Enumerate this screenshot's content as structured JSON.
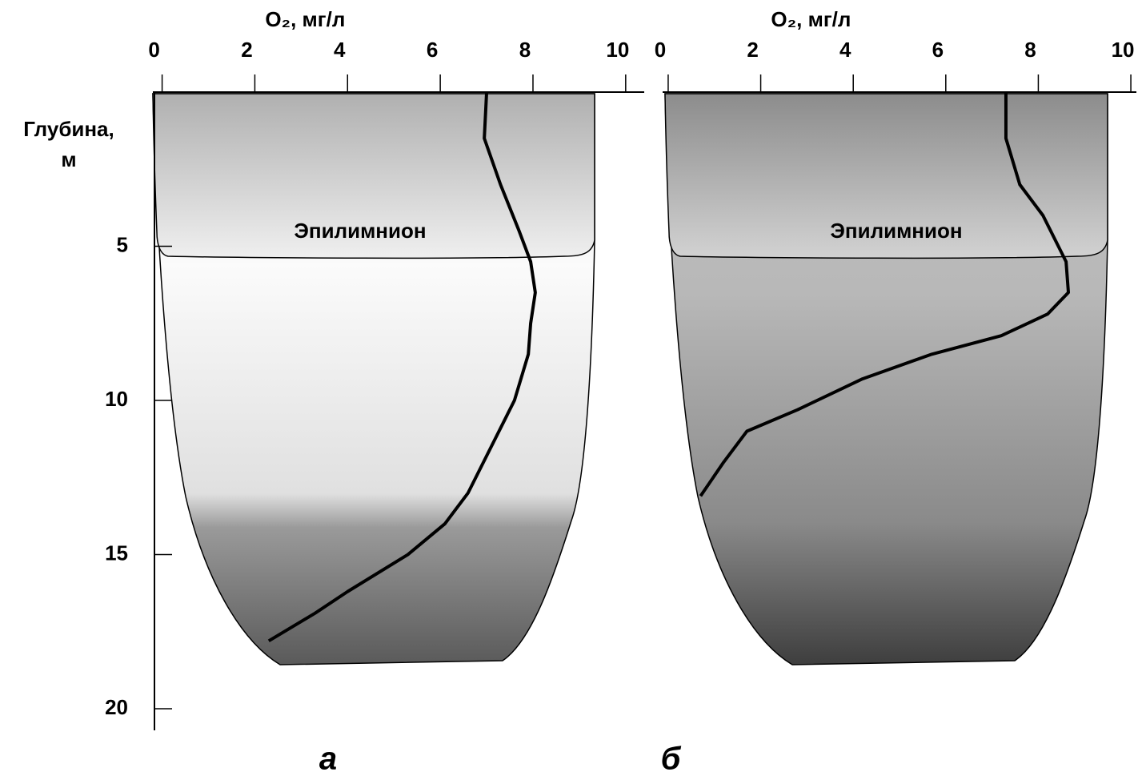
{
  "chart_data": [
    {
      "type": "line",
      "x_label": "O₂, мг/л",
      "y_label": [
        "Глубина,",
        "м"
      ],
      "annotation": "Эпилимнион",
      "panel_label": "а",
      "xlim": [
        -0.2,
        10.4
      ],
      "xticks": [
        0,
        2,
        4,
        6,
        8,
        10
      ],
      "ylim": [
        0,
        20.7
      ],
      "yticks": [
        5,
        10,
        15,
        20
      ],
      "series": [
        {
          "color": "#000000",
          "x": [
            7.0,
            6.95,
            7.3,
            7.7,
            7.95,
            8.05,
            7.95,
            7.9,
            7.6,
            7.1,
            6.6,
            6.1,
            5.3,
            4.0,
            3.3,
            2.3
          ],
          "y": [
            0,
            1.5,
            3,
            4.5,
            5.5,
            6.5,
            7.5,
            8.5,
            10,
            11.5,
            13,
            14,
            15,
            16.2,
            16.9,
            17.8
          ]
        }
      ]
    },
    {
      "type": "line",
      "x_label": "O₂, мг/л",
      "annotation": "Эпилимнион",
      "panel_label": "б",
      "xlim": [
        -0.12,
        10.12
      ],
      "xticks": [
        0,
        2,
        4,
        6,
        8,
        10
      ],
      "ylim": [
        0,
        20.7
      ],
      "series": [
        {
          "color": "#000000",
          "x": [
            7.3,
            7.3,
            7.6,
            8.1,
            8.6,
            8.65,
            8.2,
            7.2,
            5.7,
            4.2,
            2.8,
            1.7,
            1.2,
            0.7
          ],
          "y": [
            0,
            1.5,
            3,
            4,
            5.5,
            6.5,
            7.2,
            7.9,
            8.5,
            9.3,
            10.3,
            11.0,
            12.0,
            13.1
          ]
        }
      ]
    }
  ]
}
